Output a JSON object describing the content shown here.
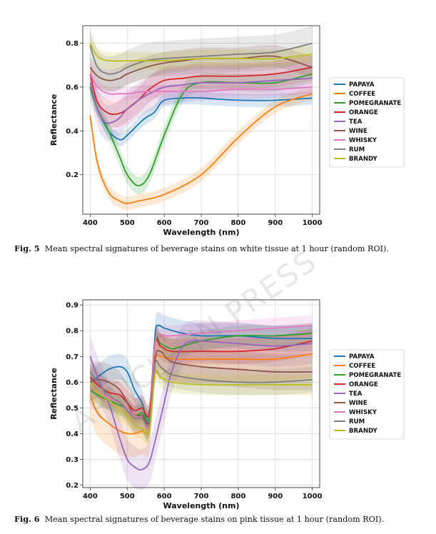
{
  "watermark": "ARTICLE IN PRESS",
  "colors": {
    "PAPAYA": "#1f77b4",
    "COFFEE": "#ff7f0e",
    "POMEGRANATE": "#2ca02c",
    "ORANGE": "#d62728",
    "TEA": "#9467bd",
    "WINE": "#8c564b",
    "WHISKY": "#e377c2",
    "RUM": "#7f7f7f",
    "BRANDY": "#bcbd22"
  },
  "figures": [
    {
      "caption_label": "Fig. 5",
      "caption_text": "Mean spectral signatures of beverage stains on white tissue at 1 hour (random ROI).",
      "chart_data": {
        "type": "line",
        "xlabel": "Wavelength (nm)",
        "ylabel": "Reflectance",
        "xlim": [
          380,
          1020
        ],
        "ylim": [
          0.02,
          0.88
        ],
        "xticks": [
          400,
          500,
          600,
          700,
          800,
          900,
          1000
        ],
        "yticks": [
          0.2,
          0.4,
          0.6,
          0.8
        ],
        "grid": true,
        "legend": "right",
        "series": [
          {
            "name": "PAPAYA",
            "band": 0.03,
            "x": [
              400,
              420,
              450,
              480,
              500,
              530,
              550,
              570,
              580,
              600,
              650,
              700,
              800,
              900,
              1000
            ],
            "y": [
              0.6,
              0.5,
              0.4,
              0.36,
              0.38,
              0.43,
              0.46,
              0.48,
              0.5,
              0.54,
              0.55,
              0.55,
              0.54,
              0.54,
              0.55
            ]
          },
          {
            "name": "COFFEE",
            "band": 0.03,
            "x": [
              400,
              420,
              450,
              480,
              500,
              530,
              600,
              700,
              800,
              900,
              1000
            ],
            "y": [
              0.47,
              0.25,
              0.12,
              0.08,
              0.07,
              0.08,
              0.11,
              0.2,
              0.37,
              0.51,
              0.57
            ]
          },
          {
            "name": "POMEGRANATE",
            "band": 0.04,
            "x": [
              400,
              420,
              450,
              480,
              500,
              530,
              560,
              600,
              650,
              700,
              800,
              900,
              1000
            ],
            "y": [
              0.6,
              0.5,
              0.4,
              0.28,
              0.2,
              0.15,
              0.2,
              0.38,
              0.57,
              0.62,
              0.62,
              0.62,
              0.66
            ]
          },
          {
            "name": "ORANGE",
            "band": 0.06,
            "x": [
              400,
              420,
              450,
              480,
              500,
              530,
              560,
              600,
              650,
              700,
              800,
              900,
              1000
            ],
            "y": [
              0.66,
              0.53,
              0.48,
              0.48,
              0.5,
              0.54,
              0.59,
              0.63,
              0.64,
              0.65,
              0.65,
              0.66,
              0.69
            ]
          },
          {
            "name": "TEA",
            "band": 0.08,
            "x": [
              400,
              420,
              440,
              460,
              480,
              500,
              530,
              560,
              600,
              650,
              700,
              800,
              900,
              1000
            ],
            "y": [
              0.62,
              0.5,
              0.44,
              0.44,
              0.46,
              0.5,
              0.54,
              0.57,
              0.6,
              0.61,
              0.62,
              0.62,
              0.63,
              0.64
            ]
          },
          {
            "name": "WINE",
            "band": 0.05,
            "x": [
              400,
              420,
              450,
              480,
              500,
              550,
              600,
              650,
              700,
              800,
              900,
              1000
            ],
            "y": [
              0.69,
              0.65,
              0.63,
              0.64,
              0.66,
              0.69,
              0.71,
              0.72,
              0.73,
              0.73,
              0.74,
              0.69
            ]
          },
          {
            "name": "WHISKY",
            "band": 0.03,
            "x": [
              400,
              420,
              450,
              480,
              500,
              550,
              600,
              700,
              800,
              900,
              1000
            ],
            "y": [
              0.66,
              0.6,
              0.57,
              0.57,
              0.57,
              0.58,
              0.58,
              0.58,
              0.59,
              0.59,
              0.6
            ]
          },
          {
            "name": "RUM",
            "band": 0.08,
            "x": [
              400,
              420,
              450,
              480,
              500,
              550,
              600,
              700,
              800,
              900,
              1000
            ],
            "y": [
              0.79,
              0.69,
              0.66,
              0.67,
              0.69,
              0.72,
              0.73,
              0.74,
              0.75,
              0.76,
              0.8
            ]
          },
          {
            "name": "BRANDY",
            "band": 0.04,
            "x": [
              400,
              420,
              450,
              500,
              550,
              600,
              700,
              800,
              900,
              1000
            ],
            "y": [
              0.8,
              0.74,
              0.72,
              0.72,
              0.72,
              0.72,
              0.73,
              0.73,
              0.73,
              0.75
            ]
          }
        ]
      }
    },
    {
      "caption_label": "Fig. 6",
      "caption_text": "Mean spectral signatures of beverage stains on pink tissue at 1 hour (random ROI).",
      "chart_data": {
        "type": "line",
        "xlabel": "Wavelength (nm)",
        "ylabel": "Reflectance",
        "xlim": [
          380,
          1020
        ],
        "ylim": [
          0.19,
          0.92
        ],
        "xticks": [
          400,
          500,
          600,
          700,
          800,
          900,
          1000
        ],
        "yticks": [
          0.2,
          0.3,
          0.4,
          0.5,
          0.6,
          0.7,
          0.8,
          0.9
        ],
        "grid": true,
        "legend": "right",
        "series": [
          {
            "name": "PAPAYA",
            "band": 0.05,
            "x": [
              400,
              420,
              450,
              480,
              500,
              520,
              540,
              560,
              575,
              585,
              600,
              650,
              700,
              800,
              900,
              1000
            ],
            "y": [
              0.6,
              0.62,
              0.65,
              0.66,
              0.64,
              0.57,
              0.52,
              0.45,
              0.78,
              0.82,
              0.81,
              0.79,
              0.78,
              0.78,
              0.77,
              0.77
            ]
          },
          {
            "name": "COFFEE",
            "band": 0.09,
            "x": [
              400,
              420,
              450,
              480,
              500,
              520,
              540,
              560,
              575,
              590,
              620,
              700,
              800,
              900,
              1000
            ],
            "y": [
              0.55,
              0.48,
              0.44,
              0.41,
              0.4,
              0.4,
              0.41,
              0.42,
              0.68,
              0.7,
              0.69,
              0.69,
              0.69,
              0.69,
              0.71
            ]
          },
          {
            "name": "POMEGRANATE",
            "band": 0.04,
            "x": [
              400,
              420,
              450,
              480,
              500,
              520,
              540,
              560,
              575,
              590,
              620,
              650,
              700,
              800,
              900,
              1000
            ],
            "y": [
              0.57,
              0.55,
              0.53,
              0.51,
              0.5,
              0.47,
              0.48,
              0.47,
              0.76,
              0.75,
              0.73,
              0.74,
              0.76,
              0.78,
              0.78,
              0.79
            ]
          },
          {
            "name": "ORANGE",
            "band": 0.05,
            "x": [
              400,
              420,
              450,
              480,
              500,
              520,
              540,
              560,
              575,
              590,
              620,
              700,
              800,
              900,
              1000
            ],
            "y": [
              0.62,
              0.59,
              0.56,
              0.55,
              0.52,
              0.49,
              0.5,
              0.48,
              0.75,
              0.74,
              0.72,
              0.72,
              0.72,
              0.73,
              0.76
            ]
          },
          {
            "name": "TEA",
            "band": 0.08,
            "x": [
              400,
              420,
              450,
              480,
              500,
              520,
              540,
              560,
              580,
              600,
              620,
              650,
              680,
              700,
              800,
              900,
              1000
            ],
            "y": [
              0.7,
              0.62,
              0.52,
              0.38,
              0.3,
              0.27,
              0.26,
              0.29,
              0.4,
              0.52,
              0.64,
              0.74,
              0.76,
              0.76,
              0.75,
              0.74,
              0.75
            ]
          },
          {
            "name": "WINE",
            "band": 0.07,
            "x": [
              400,
              420,
              450,
              480,
              500,
              520,
              540,
              560,
              575,
              590,
              620,
              700,
              800,
              900,
              1000
            ],
            "y": [
              0.6,
              0.61,
              0.6,
              0.57,
              0.52,
              0.47,
              0.47,
              0.45,
              0.69,
              0.72,
              0.68,
              0.66,
              0.65,
              0.64,
              0.64
            ]
          },
          {
            "name": "WHISKY",
            "band": 0.04,
            "x": [
              400,
              420,
              450,
              480,
              500,
              520,
              540,
              560,
              575,
              590,
              620,
              700,
              800,
              900,
              1000
            ],
            "y": [
              0.58,
              0.56,
              0.54,
              0.52,
              0.5,
              0.47,
              0.46,
              0.44,
              0.75,
              0.78,
              0.78,
              0.79,
              0.8,
              0.81,
              0.82
            ]
          },
          {
            "name": "RUM",
            "band": 0.05,
            "x": [
              400,
              420,
              450,
              480,
              500,
              520,
              540,
              560,
              575,
              590,
              620,
              700,
              800,
              900,
              1000
            ],
            "y": [
              0.64,
              0.6,
              0.55,
              0.52,
              0.49,
              0.46,
              0.46,
              0.44,
              0.67,
              0.66,
              0.63,
              0.61,
              0.6,
              0.6,
              0.61
            ]
          },
          {
            "name": "BRANDY",
            "band": 0.04,
            "x": [
              400,
              420,
              450,
              480,
              500,
              520,
              540,
              560,
              575,
              590,
              620,
              700,
              800,
              900,
              1000
            ],
            "y": [
              0.6,
              0.56,
              0.53,
              0.49,
              0.47,
              0.43,
              0.42,
              0.41,
              0.63,
              0.62,
              0.6,
              0.59,
              0.59,
              0.59,
              0.59
            ]
          }
        ]
      }
    }
  ]
}
